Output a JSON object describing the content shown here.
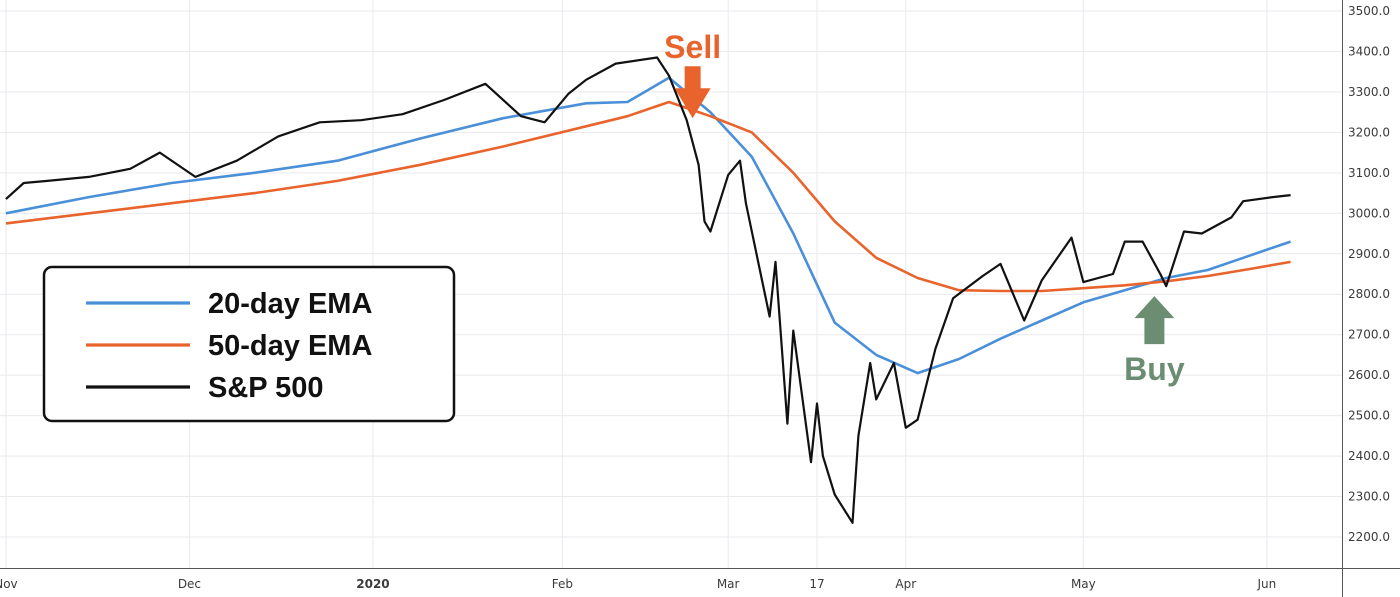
{
  "chart_data": {
    "type": "line",
    "ylim": [
      2150,
      3530
    ],
    "y_ticks": [
      2200,
      2300,
      2400,
      2500,
      2600,
      2700,
      2800,
      2900,
      3000,
      3100,
      3200,
      3300,
      3400,
      3500
    ],
    "y_tick_labels": [
      "2200.0",
      "2300.0",
      "2400.0",
      "2500.0",
      "2600.0",
      "2700.0",
      "2800.0",
      "2900.0",
      "3000.0",
      "3100.0",
      "3200.0",
      "3300.0",
      "3400.0",
      "3500.0"
    ],
    "x_range": [
      "2019-10-31",
      "2020-06-12"
    ],
    "x_ticks": [
      {
        "date": "2019-11-01",
        "label": "Nov",
        "bold": false
      },
      {
        "date": "2019-12-02",
        "label": "Dec",
        "bold": false
      },
      {
        "date": "2020-01-02",
        "label": "2020",
        "bold": true
      },
      {
        "date": "2020-02-03",
        "label": "Feb",
        "bold": false
      },
      {
        "date": "2020-03-02",
        "label": "Mar",
        "bold": false
      },
      {
        "date": "2020-03-17",
        "label": "17",
        "bold": false
      },
      {
        "date": "2020-04-01",
        "label": "Apr",
        "bold": false
      },
      {
        "date": "2020-05-01",
        "label": "May",
        "bold": false
      },
      {
        "date": "2020-06-01",
        "label": "Jun",
        "bold": false
      }
    ],
    "grid": true,
    "legend_position": "left",
    "series": [
      {
        "name": "20-day EMA",
        "color": "#4a90d9",
        "points": [
          [
            "2019-11-01",
            3000
          ],
          [
            "2019-11-15",
            3040
          ],
          [
            "2019-11-29",
            3075
          ],
          [
            "2019-12-13",
            3100
          ],
          [
            "2019-12-27",
            3130
          ],
          [
            "2020-01-10",
            3185
          ],
          [
            "2020-01-24",
            3235
          ],
          [
            "2020-02-07",
            3272
          ],
          [
            "2020-02-14",
            3275
          ],
          [
            "2020-02-21",
            3335
          ],
          [
            "2020-02-28",
            3250
          ],
          [
            "2020-03-06",
            3140
          ],
          [
            "2020-03-13",
            2950
          ],
          [
            "2020-03-20",
            2730
          ],
          [
            "2020-03-27",
            2650
          ],
          [
            "2020-04-03",
            2605
          ],
          [
            "2020-04-10",
            2640
          ],
          [
            "2020-04-17",
            2690
          ],
          [
            "2020-04-24",
            2735
          ],
          [
            "2020-05-01",
            2780
          ],
          [
            "2020-05-08",
            2810
          ],
          [
            "2020-05-15",
            2840
          ],
          [
            "2020-05-22",
            2860
          ],
          [
            "2020-05-29",
            2895
          ],
          [
            "2020-06-05",
            2930
          ]
        ]
      },
      {
        "name": "50-day EMA",
        "color": "#e8642c",
        "points": [
          [
            "2019-11-01",
            2975
          ],
          [
            "2019-11-15",
            3000
          ],
          [
            "2019-11-29",
            3025
          ],
          [
            "2019-12-13",
            3050
          ],
          [
            "2019-12-27",
            3080
          ],
          [
            "2020-01-10",
            3120
          ],
          [
            "2020-01-24",
            3165
          ],
          [
            "2020-02-07",
            3215
          ],
          [
            "2020-02-14",
            3240
          ],
          [
            "2020-02-21",
            3275
          ],
          [
            "2020-02-28",
            3240
          ],
          [
            "2020-03-06",
            3200
          ],
          [
            "2020-03-13",
            3100
          ],
          [
            "2020-03-20",
            2980
          ],
          [
            "2020-03-27",
            2890
          ],
          [
            "2020-04-03",
            2840
          ],
          [
            "2020-04-10",
            2810
          ],
          [
            "2020-04-17",
            2808
          ],
          [
            "2020-04-24",
            2808
          ],
          [
            "2020-05-01",
            2815
          ],
          [
            "2020-05-08",
            2822
          ],
          [
            "2020-05-15",
            2832
          ],
          [
            "2020-05-22",
            2845
          ],
          [
            "2020-05-29",
            2862
          ],
          [
            "2020-06-05",
            2880
          ]
        ]
      },
      {
        "name": "S&P 500",
        "color": "#111111",
        "points": [
          [
            "2019-11-01",
            3035
          ],
          [
            "2019-11-04",
            3075
          ],
          [
            "2019-11-08",
            3080
          ],
          [
            "2019-11-15",
            3090
          ],
          [
            "2019-11-22",
            3110
          ],
          [
            "2019-11-27",
            3150
          ],
          [
            "2019-12-03",
            3090
          ],
          [
            "2019-12-10",
            3130
          ],
          [
            "2019-12-17",
            3190
          ],
          [
            "2019-12-24",
            3225
          ],
          [
            "2019-12-31",
            3230
          ],
          [
            "2020-01-07",
            3245
          ],
          [
            "2020-01-14",
            3280
          ],
          [
            "2020-01-21",
            3320
          ],
          [
            "2020-01-27",
            3240
          ],
          [
            "2020-01-31",
            3225
          ],
          [
            "2020-02-04",
            3295
          ],
          [
            "2020-02-07",
            3330
          ],
          [
            "2020-02-12",
            3370
          ],
          [
            "2020-02-19",
            3385
          ],
          [
            "2020-02-21",
            3340
          ],
          [
            "2020-02-24",
            3230
          ],
          [
            "2020-02-26",
            3120
          ],
          [
            "2020-02-27",
            2980
          ],
          [
            "2020-02-28",
            2955
          ],
          [
            "2020-03-02",
            3095
          ],
          [
            "2020-03-04",
            3130
          ],
          [
            "2020-03-05",
            3025
          ],
          [
            "2020-03-09",
            2745
          ],
          [
            "2020-03-10",
            2880
          ],
          [
            "2020-03-12",
            2480
          ],
          [
            "2020-03-13",
            2710
          ],
          [
            "2020-03-16",
            2385
          ],
          [
            "2020-03-17",
            2530
          ],
          [
            "2020-03-18",
            2400
          ],
          [
            "2020-03-20",
            2305
          ],
          [
            "2020-03-23",
            2235
          ],
          [
            "2020-03-24",
            2450
          ],
          [
            "2020-03-26",
            2630
          ],
          [
            "2020-03-27",
            2540
          ],
          [
            "2020-03-30",
            2630
          ],
          [
            "2020-04-01",
            2470
          ],
          [
            "2020-04-03",
            2490
          ],
          [
            "2020-04-06",
            2665
          ],
          [
            "2020-04-09",
            2790
          ],
          [
            "2020-04-14",
            2845
          ],
          [
            "2020-04-17",
            2875
          ],
          [
            "2020-04-21",
            2735
          ],
          [
            "2020-04-24",
            2835
          ],
          [
            "2020-04-29",
            2940
          ],
          [
            "2020-05-01",
            2830
          ],
          [
            "2020-05-06",
            2850
          ],
          [
            "2020-05-08",
            2930
          ],
          [
            "2020-05-11",
            2930
          ],
          [
            "2020-05-14",
            2850
          ],
          [
            "2020-05-15",
            2820
          ],
          [
            "2020-05-18",
            2955
          ],
          [
            "2020-05-21",
            2950
          ],
          [
            "2020-05-26",
            2990
          ],
          [
            "2020-05-28",
            3030
          ],
          [
            "2020-06-02",
            3040
          ],
          [
            "2020-06-05",
            3045
          ]
        ]
      }
    ],
    "annotations": [
      {
        "text": "Sell",
        "date": "2020-02-25",
        "value": 3230,
        "color": "#e8642c",
        "arrow": "down"
      },
      {
        "text": "Buy",
        "date": "2020-05-13",
        "value": 2815,
        "color": "#6b8e73",
        "arrow": "up"
      }
    ]
  }
}
